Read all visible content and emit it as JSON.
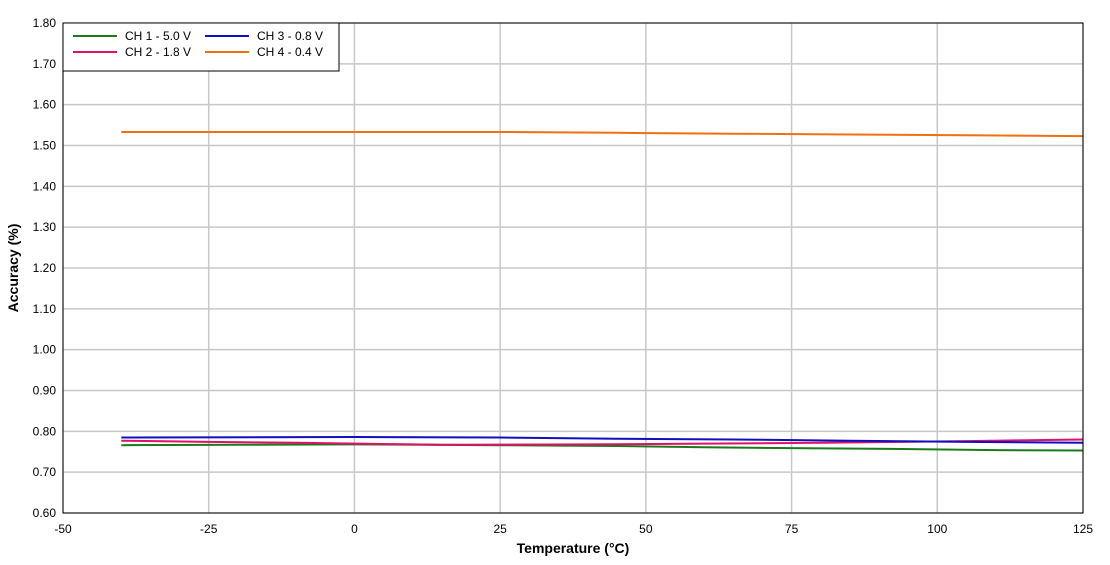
{
  "chart_data": {
    "type": "line",
    "xlabel": "Temperature (°C)",
    "ylabel": "Accuracy (%)",
    "xlim": [
      -50,
      125
    ],
    "ylim": [
      0.6,
      1.8
    ],
    "x_ticks": [
      "-50",
      "-25",
      "0",
      "25",
      "50",
      "75",
      "100",
      "125"
    ],
    "y_ticks": [
      "0.60",
      "0.70",
      "0.80",
      "0.90",
      "1.00",
      "1.10",
      "1.20",
      "1.30",
      "1.40",
      "1.50",
      "1.60",
      "1.70",
      "1.80"
    ],
    "grid": true,
    "legend_position": "top-left",
    "series": [
      {
        "name": "CH 1 - 5.0 V",
        "color": "#1a7a1a",
        "x": [
          -40,
          -20,
          0,
          25,
          45,
          60,
          75,
          92,
          110,
          125
        ],
        "y": [
          0.766,
          0.767,
          0.768,
          0.766,
          0.764,
          0.761,
          0.759,
          0.757,
          0.754,
          0.753
        ]
      },
      {
        "name": "CH 2 - 1.8 V",
        "color": "#e0106a",
        "x": [
          -40,
          -25,
          -10,
          5,
          15,
          40,
          60,
          80,
          105,
          125
        ],
        "y": [
          0.777,
          0.774,
          0.772,
          0.769,
          0.767,
          0.768,
          0.77,
          0.772,
          0.776,
          0.78
        ]
      },
      {
        "name": "CH 3 - 0.8 V",
        "color": "#1010c0",
        "x": [
          -40,
          0,
          25,
          45,
          65,
          85,
          105,
          125
        ],
        "y": [
          0.785,
          0.786,
          0.785,
          0.782,
          0.78,
          0.777,
          0.774,
          0.772
        ]
      },
      {
        "name": "CH 4 - 0.4 V",
        "color": "#f07010",
        "x": [
          -40,
          0,
          25,
          45,
          65,
          85,
          105,
          125
        ],
        "y": [
          1.533,
          1.533,
          1.533,
          1.531,
          1.529,
          1.527,
          1.525,
          1.523
        ]
      }
    ]
  }
}
